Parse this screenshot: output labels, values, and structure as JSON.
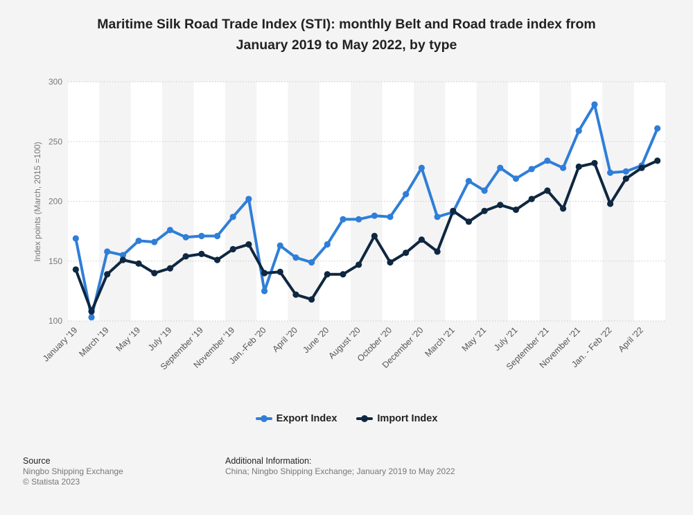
{
  "header": {
    "title_line1": "Maritime Silk Road Trade Index (STI): monthly Belt and Road trade index from",
    "title_line2": "January 2019 to May 2022, by type"
  },
  "chart_data": {
    "type": "line",
    "ylabel": "Index points (March, 2015 =100)",
    "xlabel": "",
    "ylim": [
      100,
      300
    ],
    "yticks": [
      100,
      150,
      200,
      250,
      300
    ],
    "grid": true,
    "x_tick_labels": [
      "January '19",
      "March '19",
      "May '19",
      "July '19",
      "September '19",
      "November '19",
      "Jan.-Feb '20",
      "April '20",
      "June '20",
      "August '20",
      "October '20",
      "December '20",
      "March '21",
      "May '21",
      "July '21",
      "September '21",
      "November '21",
      "Jan. - Feb '22",
      "April '22"
    ],
    "series": [
      {
        "name": "Export Index",
        "color": "#2f7ed8",
        "values": [
          169,
          103,
          158,
          155,
          167,
          166,
          176,
          170,
          171,
          171,
          187,
          202,
          125,
          163,
          153,
          149,
          164,
          185,
          185,
          188,
          187,
          206,
          228,
          187,
          191,
          217,
          209,
          228,
          219,
          227,
          234,
          228,
          259,
          281,
          224,
          225,
          230,
          261
        ]
      },
      {
        "name": "Import Index",
        "color": "#0f2740",
        "values": [
          143,
          108,
          139,
          151,
          148,
          140,
          144,
          154,
          156,
          151,
          160,
          164,
          140,
          141,
          122,
          118,
          139,
          139,
          147,
          171,
          149,
          157,
          168,
          158,
          192,
          183,
          192,
          197,
          193,
          202,
          209,
          194,
          229,
          232,
          198,
          219,
          228,
          234
        ]
      }
    ]
  },
  "legend": {
    "items": [
      {
        "label": "Export Index",
        "color": "#2f7ed8"
      },
      {
        "label": "Import Index",
        "color": "#0f2740"
      }
    ]
  },
  "footer": {
    "source_heading": "Source",
    "source_line1": "Ningbo Shipping Exchange",
    "source_line2": "© Statista 2023",
    "info_heading": "Additional Information:",
    "info_text": "China; Ningbo Shipping Exchange; January 2019 to May 2022"
  }
}
